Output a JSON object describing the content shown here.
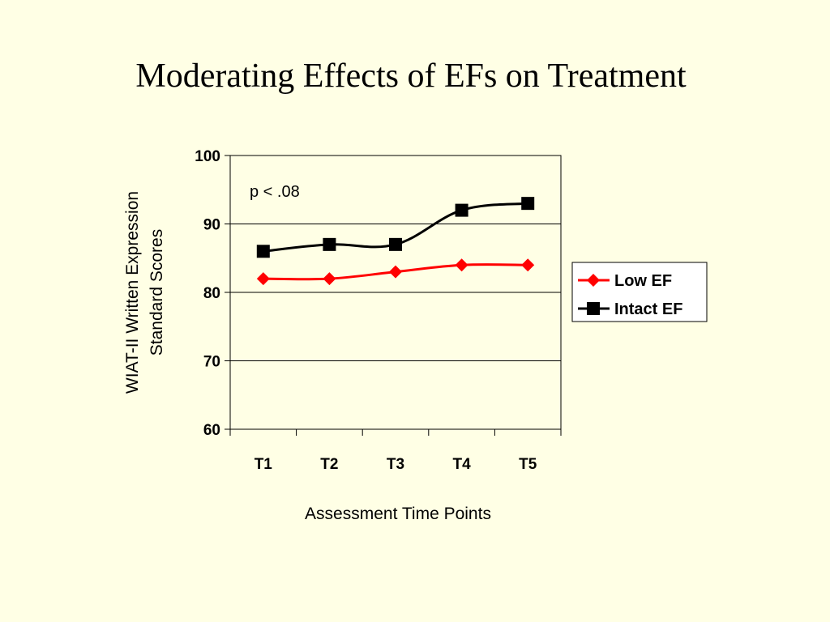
{
  "slide": {
    "title": "Moderating Effects of EFs on Treatment"
  },
  "colors": {
    "background": "#FFFFE5",
    "low_ef": "#FF0000",
    "intact_ef": "#000000"
  },
  "chart_data": {
    "type": "line",
    "title": "",
    "xlabel": "Assessment Time Points",
    "ylabel_lines": [
      "WIAT-II Written Expression",
      "Standard Scores"
    ],
    "categories": [
      "T1",
      "T2",
      "T3",
      "T4",
      "T5"
    ],
    "ylim": [
      60,
      100
    ],
    "yticks": [
      60,
      70,
      80,
      90,
      100
    ],
    "grid": "horizontal",
    "legend_position": "right",
    "annotation": "p < .08",
    "series": [
      {
        "name": "Low EF",
        "values": [
          82,
          82,
          83,
          84,
          84
        ],
        "marker": "diamond",
        "color": "#FF0000"
      },
      {
        "name": "Intact EF",
        "values": [
          86,
          87,
          87,
          92,
          93
        ],
        "marker": "square",
        "color": "#000000"
      }
    ]
  }
}
